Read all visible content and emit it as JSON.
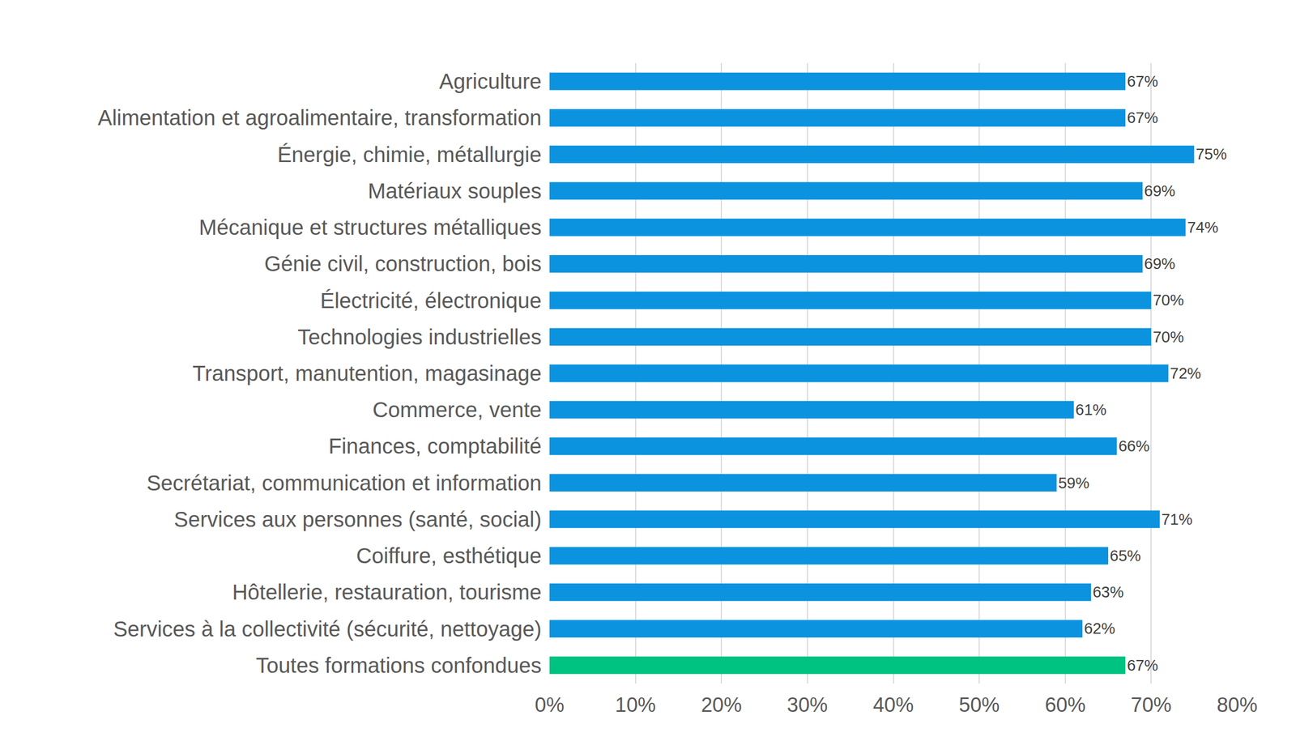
{
  "chart_data": {
    "type": "bar",
    "orientation": "horizontal",
    "categories": [
      "Agriculture",
      "Alimentation et agroalimentaire, transformation",
      "Énergie, chimie, métallurgie",
      "Matériaux souples",
      "Mécanique et structures métalliques",
      "Génie civil, construction, bois",
      "Électricité, électronique",
      "Technologies industrielles",
      "Transport, manutention, magasinage",
      "Commerce, vente",
      "Finances, comptabilité",
      "Secrétariat, communication et information",
      "Services aux personnes (santé, social)",
      "Coiffure, esthétique",
      "Hôtellerie, restauration, tourisme",
      "Services à la collectivité (sécurité, nettoyage)",
      "Toutes formations confondues"
    ],
    "values": [
      67,
      67,
      75,
      69,
      74,
      69,
      70,
      70,
      72,
      61,
      66,
      59,
      71,
      65,
      63,
      62,
      67
    ],
    "value_labels": [
      "67%",
      "67%",
      "75%",
      "69%",
      "74%",
      "69%",
      "70%",
      "70%",
      "72%",
      "61%",
      "66%",
      "59%",
      "71%",
      "65%",
      "63%",
      "62%",
      "67%"
    ],
    "colors": [
      "#0b93e0",
      "#0b93e0",
      "#0b93e0",
      "#0b93e0",
      "#0b93e0",
      "#0b93e0",
      "#0b93e0",
      "#0b93e0",
      "#0b93e0",
      "#0b93e0",
      "#0b93e0",
      "#0b93e0",
      "#0b93e0",
      "#0b93e0",
      "#0b93e0",
      "#0b93e0",
      "#00c281"
    ],
    "xlim": [
      0,
      80
    ],
    "xticks": [
      {
        "value": 0,
        "label": "0%"
      },
      {
        "value": 10,
        "label": "10%"
      },
      {
        "value": 20,
        "label": "20%"
      },
      {
        "value": 30,
        "label": "30%"
      },
      {
        "value": 40,
        "label": "40%"
      },
      {
        "value": 50,
        "label": "50%"
      },
      {
        "value": 60,
        "label": "60%"
      },
      {
        "value": 70,
        "label": "70%"
      },
      {
        "value": 80,
        "label": "80%"
      }
    ],
    "grid": true,
    "data_labels": true
  }
}
